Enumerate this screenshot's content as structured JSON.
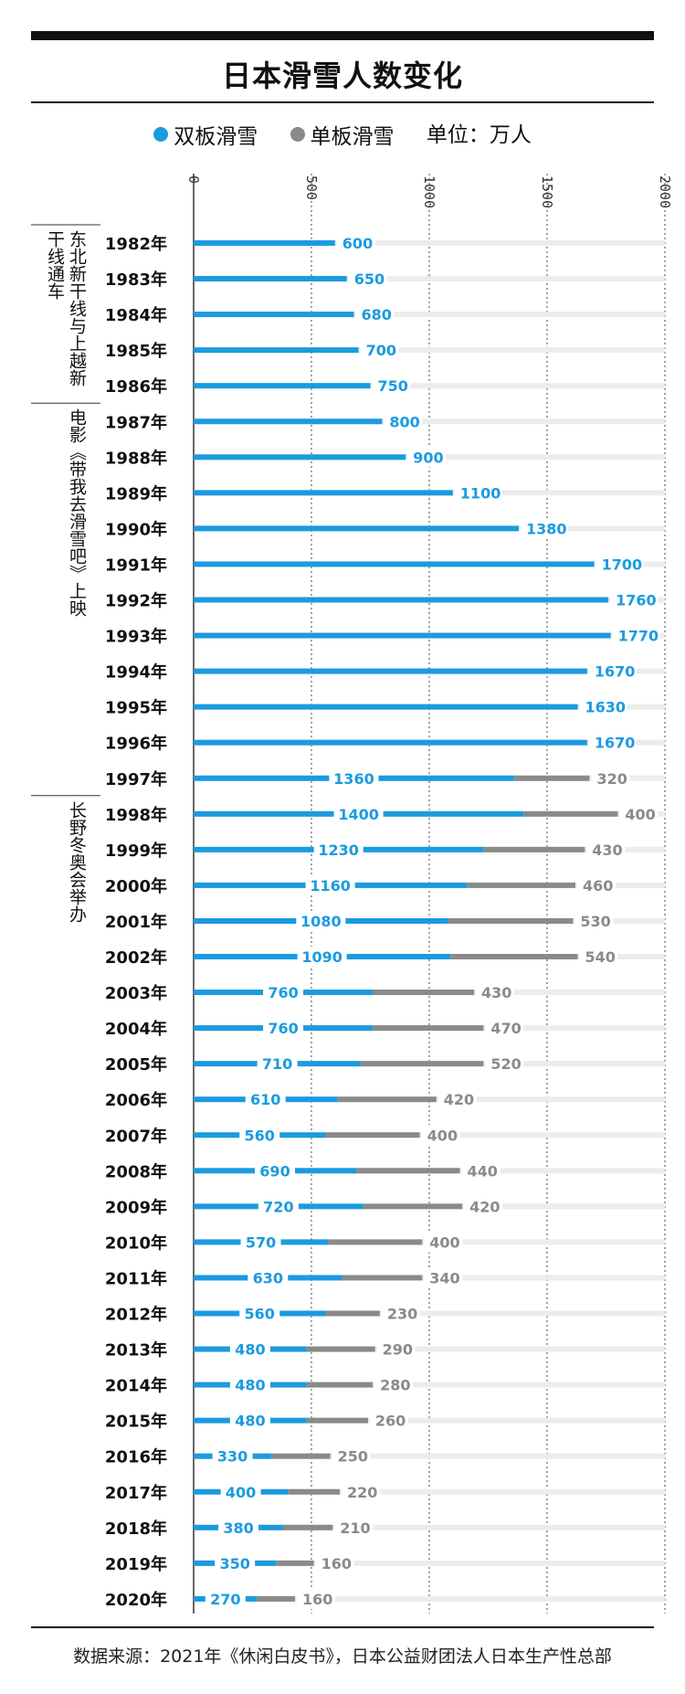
{
  "title": "日本滑雪人数变化",
  "legend": {
    "series1": "双板滑雪",
    "series2": "单板滑雪",
    "unit": "单位：万人"
  },
  "source": "数据来源：2021年《休闲白皮书》，日本公益财团法人日本生产性总部",
  "colors": {
    "ski": "#1a9be0",
    "snowboard": "#8a8a8a",
    "track": "#ececec"
  },
  "annotations": [
    {
      "text": "东北新干线与上越新干线通车",
      "from": "1982年",
      "to": "1986年"
    },
    {
      "text": "电影《带我去滑雪吧》上映",
      "from": "1987年",
      "to": "1997年"
    },
    {
      "text": "长野冬奥会举办",
      "from": "1998年",
      "to": "2002年"
    }
  ],
  "chart_data": {
    "type": "bar",
    "orientation": "horizontal",
    "stacked": true,
    "xlim": [
      0,
      2000
    ],
    "ticks": [
      "0",
      "500",
      "1000",
      "1500",
      "2000"
    ],
    "tick_values": [
      0,
      500,
      1000,
      1500,
      2000
    ],
    "categories": [
      "1982年",
      "1983年",
      "1984年",
      "1985年",
      "1986年",
      "1987年",
      "1988年",
      "1989年",
      "1990年",
      "1991年",
      "1992年",
      "1993年",
      "1994年",
      "1995年",
      "1996年",
      "1997年",
      "1998年",
      "1999年",
      "2000年",
      "2001年",
      "2002年",
      "2003年",
      "2004年",
      "2005年",
      "2006年",
      "2007年",
      "2008年",
      "2009年",
      "2010年",
      "2011年",
      "2012年",
      "2013年",
      "2014年",
      "2015年",
      "2016年",
      "2017年",
      "2018年",
      "2019年",
      "2020年"
    ],
    "series": [
      {
        "name": "双板滑雪",
        "values": [
          600,
          650,
          680,
          700,
          750,
          800,
          900,
          1100,
          1380,
          1700,
          1760,
          1770,
          1670,
          1630,
          1670,
          1360,
          1400,
          1230,
          1160,
          1080,
          1090,
          760,
          760,
          710,
          610,
          560,
          690,
          720,
          570,
          630,
          560,
          480,
          480,
          480,
          330,
          400,
          380,
          350,
          270
        ]
      },
      {
        "name": "单板滑雪",
        "values": [
          null,
          null,
          null,
          null,
          null,
          null,
          null,
          null,
          null,
          null,
          null,
          null,
          null,
          null,
          null,
          320,
          400,
          430,
          460,
          530,
          540,
          430,
          470,
          520,
          420,
          400,
          440,
          420,
          400,
          340,
          230,
          290,
          280,
          260,
          250,
          220,
          210,
          160,
          160
        ]
      }
    ]
  }
}
